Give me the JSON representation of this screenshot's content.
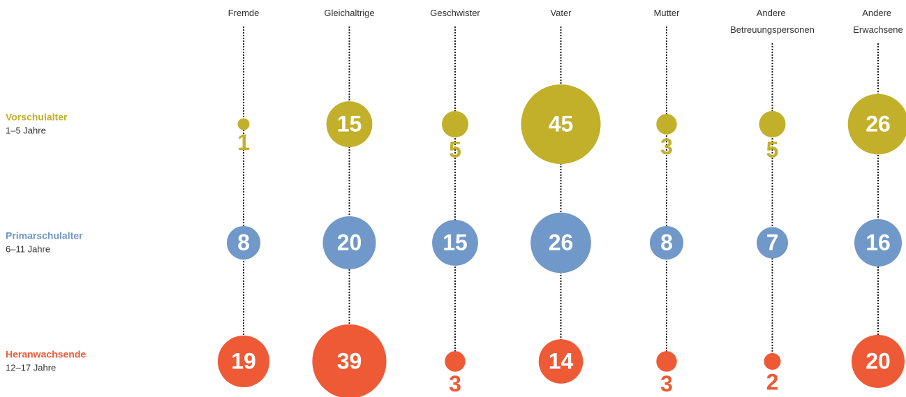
{
  "chart_data": {
    "type": "bubble",
    "categories": [
      "Fremde",
      "Gleichaltrige",
      "Geschwister",
      "Vater",
      "Mutter",
      "Andere Betreuungspersonen",
      "Andere Erwachsene"
    ],
    "series": [
      {
        "name": "Vorschulalter",
        "range": "1–5 Jahre",
        "color": "#c2b02a",
        "values": [
          1,
          15,
          5,
          45,
          3,
          5,
          26
        ]
      },
      {
        "name": "Primarschulalter",
        "range": "6–11 Jahre",
        "color": "#7098c8",
        "values": [
          8,
          20,
          15,
          26,
          8,
          7,
          16
        ]
      },
      {
        "name": "Heranwachsende",
        "range": "12–17 Jahre",
        "color": "#ef5a36",
        "values": [
          19,
          39,
          3,
          14,
          3,
          2,
          20
        ]
      }
    ]
  }
}
